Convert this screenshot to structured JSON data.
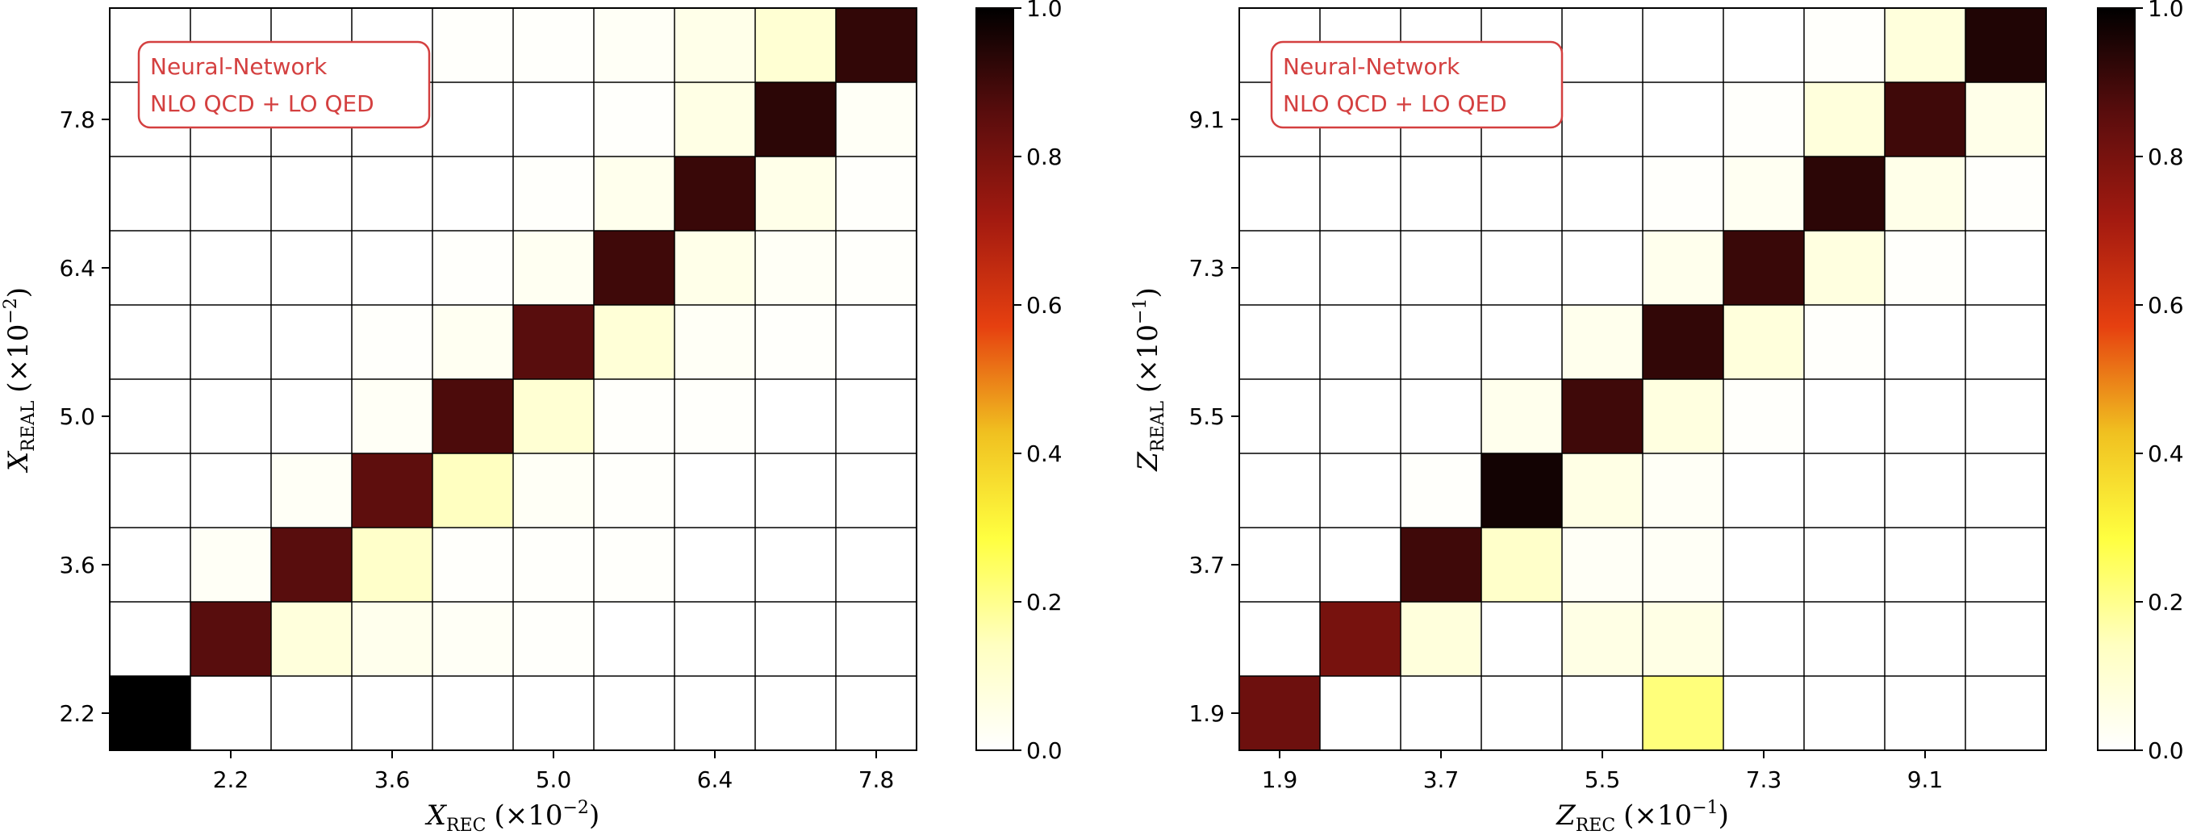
{
  "colors": {
    "cmap_stops": [
      "#ffffff",
      "#ffffc0",
      "#ffff40",
      "#f0c020",
      "#e64010",
      "#a31a10",
      "#5a0d0d",
      "#000000"
    ],
    "grid": "#000000",
    "annotation": "#d44040"
  },
  "chart_data": [
    {
      "type": "heatmap",
      "annotation": [
        "Neural-Network",
        "NLO QCD + LO QED"
      ],
      "xlabel": {
        "var": "X",
        "sub": "REC",
        "exp": "(×10",
        "pow": "−2",
        "close": ")"
      },
      "ylabel": {
        "var": "X",
        "sub": "REAL",
        "exp": "(×10",
        "pow": "−2",
        "close": ")"
      },
      "n_bins": 10,
      "xticks": [
        {
          "bin": 1,
          "label": "2.2"
        },
        {
          "bin": 3,
          "label": "3.6"
        },
        {
          "bin": 5,
          "label": "5.0"
        },
        {
          "bin": 7,
          "label": "6.4"
        },
        {
          "bin": 9,
          "label": "7.8"
        }
      ],
      "yticks": [
        {
          "bin": 0,
          "label": "2.2"
        },
        {
          "bin": 2,
          "label": "3.6"
        },
        {
          "bin": 4,
          "label": "5.0"
        },
        {
          "bin": 6,
          "label": "6.4"
        },
        {
          "bin": 8,
          "label": "7.8"
        }
      ],
      "colorbar": {
        "range": [
          0.0,
          1.0
        ],
        "ticks": [
          "0.0",
          "0.2",
          "0.4",
          "0.6",
          "0.8",
          "1.0"
        ]
      },
      "values": [
        [
          1.0,
          0.0,
          0.0,
          0.0,
          0.0,
          0.0,
          0.0,
          0.0,
          0.0,
          0.0
        ],
        [
          0.0,
          0.86,
          0.08,
          0.04,
          0.02,
          0.01,
          0.0,
          0.0,
          0.0,
          0.0
        ],
        [
          0.0,
          0.02,
          0.86,
          0.12,
          0.01,
          0.01,
          0.01,
          0.0,
          0.0,
          0.0
        ],
        [
          0.0,
          0.0,
          0.02,
          0.85,
          0.14,
          0.02,
          0.01,
          0.0,
          0.0,
          0.0
        ],
        [
          0.0,
          0.0,
          0.0,
          0.02,
          0.88,
          0.1,
          0.01,
          0.01,
          0.0,
          0.0
        ],
        [
          0.0,
          0.0,
          0.0,
          0.01,
          0.03,
          0.86,
          0.09,
          0.02,
          0.01,
          0.0
        ],
        [
          0.0,
          0.0,
          0.0,
          0.0,
          0.01,
          0.03,
          0.9,
          0.05,
          0.02,
          0.01
        ],
        [
          0.0,
          0.0,
          0.0,
          0.0,
          0.0,
          0.01,
          0.04,
          0.91,
          0.05,
          0.01
        ],
        [
          0.0,
          0.0,
          0.0,
          0.0,
          0.0,
          0.0,
          0.01,
          0.06,
          0.93,
          0.02
        ],
        [
          0.0,
          0.0,
          0.0,
          0.0,
          0.01,
          0.01,
          0.02,
          0.05,
          0.1,
          0.92
        ]
      ]
    },
    {
      "type": "heatmap",
      "annotation": [
        "Neural-Network",
        "NLO QCD + LO QED"
      ],
      "xlabel": {
        "var": "Z",
        "sub": "REC",
        "exp": "(×10",
        "pow": "−1",
        "close": ")"
      },
      "ylabel": {
        "var": "Z",
        "sub": "REAL",
        "exp": "(×10",
        "pow": "−1",
        "close": ")"
      },
      "n_bins": 10,
      "xticks": [
        {
          "bin": 0,
          "label": "1.9"
        },
        {
          "bin": 2,
          "label": "3.7"
        },
        {
          "bin": 4,
          "label": "5.5"
        },
        {
          "bin": 6,
          "label": "7.3"
        },
        {
          "bin": 8,
          "label": "9.1"
        }
      ],
      "yticks": [
        {
          "bin": 0,
          "label": "1.9"
        },
        {
          "bin": 2,
          "label": "3.7"
        },
        {
          "bin": 4,
          "label": "5.5"
        },
        {
          "bin": 6,
          "label": "7.3"
        },
        {
          "bin": 8,
          "label": "9.1"
        }
      ],
      "colorbar": {
        "range": [
          0.0,
          1.0
        ],
        "ticks": [
          "0.0",
          "0.2",
          "0.4",
          "0.6",
          "0.8",
          "1.0"
        ]
      },
      "values": [
        [
          0.82,
          0.0,
          0.0,
          0.0,
          0.0,
          0.22,
          0.0,
          0.0,
          0.0,
          0.0
        ],
        [
          0.0,
          0.8,
          0.08,
          0.0,
          0.06,
          0.06,
          0.0,
          0.0,
          0.0,
          0.0
        ],
        [
          0.0,
          0.0,
          0.9,
          0.12,
          0.02,
          0.02,
          0.0,
          0.0,
          0.0,
          0.0
        ],
        [
          0.0,
          0.0,
          0.01,
          0.97,
          0.06,
          0.02,
          0.0,
          0.0,
          0.0,
          0.0
        ],
        [
          0.0,
          0.0,
          0.0,
          0.04,
          0.9,
          0.07,
          0.01,
          0.0,
          0.0,
          0.0
        ],
        [
          0.0,
          0.0,
          0.0,
          0.0,
          0.04,
          0.92,
          0.08,
          0.01,
          0.0,
          0.0
        ],
        [
          0.0,
          0.0,
          0.0,
          0.0,
          0.0,
          0.04,
          0.91,
          0.07,
          0.01,
          0.0
        ],
        [
          0.0,
          0.0,
          0.0,
          0.0,
          0.0,
          0.01,
          0.03,
          0.93,
          0.05,
          0.01
        ],
        [
          0.0,
          0.0,
          0.0,
          0.0,
          0.0,
          0.0,
          0.01,
          0.08,
          0.9,
          0.05
        ],
        [
          0.0,
          0.0,
          0.0,
          0.0,
          0.0,
          0.0,
          0.0,
          0.01,
          0.08,
          0.95
        ]
      ]
    }
  ]
}
